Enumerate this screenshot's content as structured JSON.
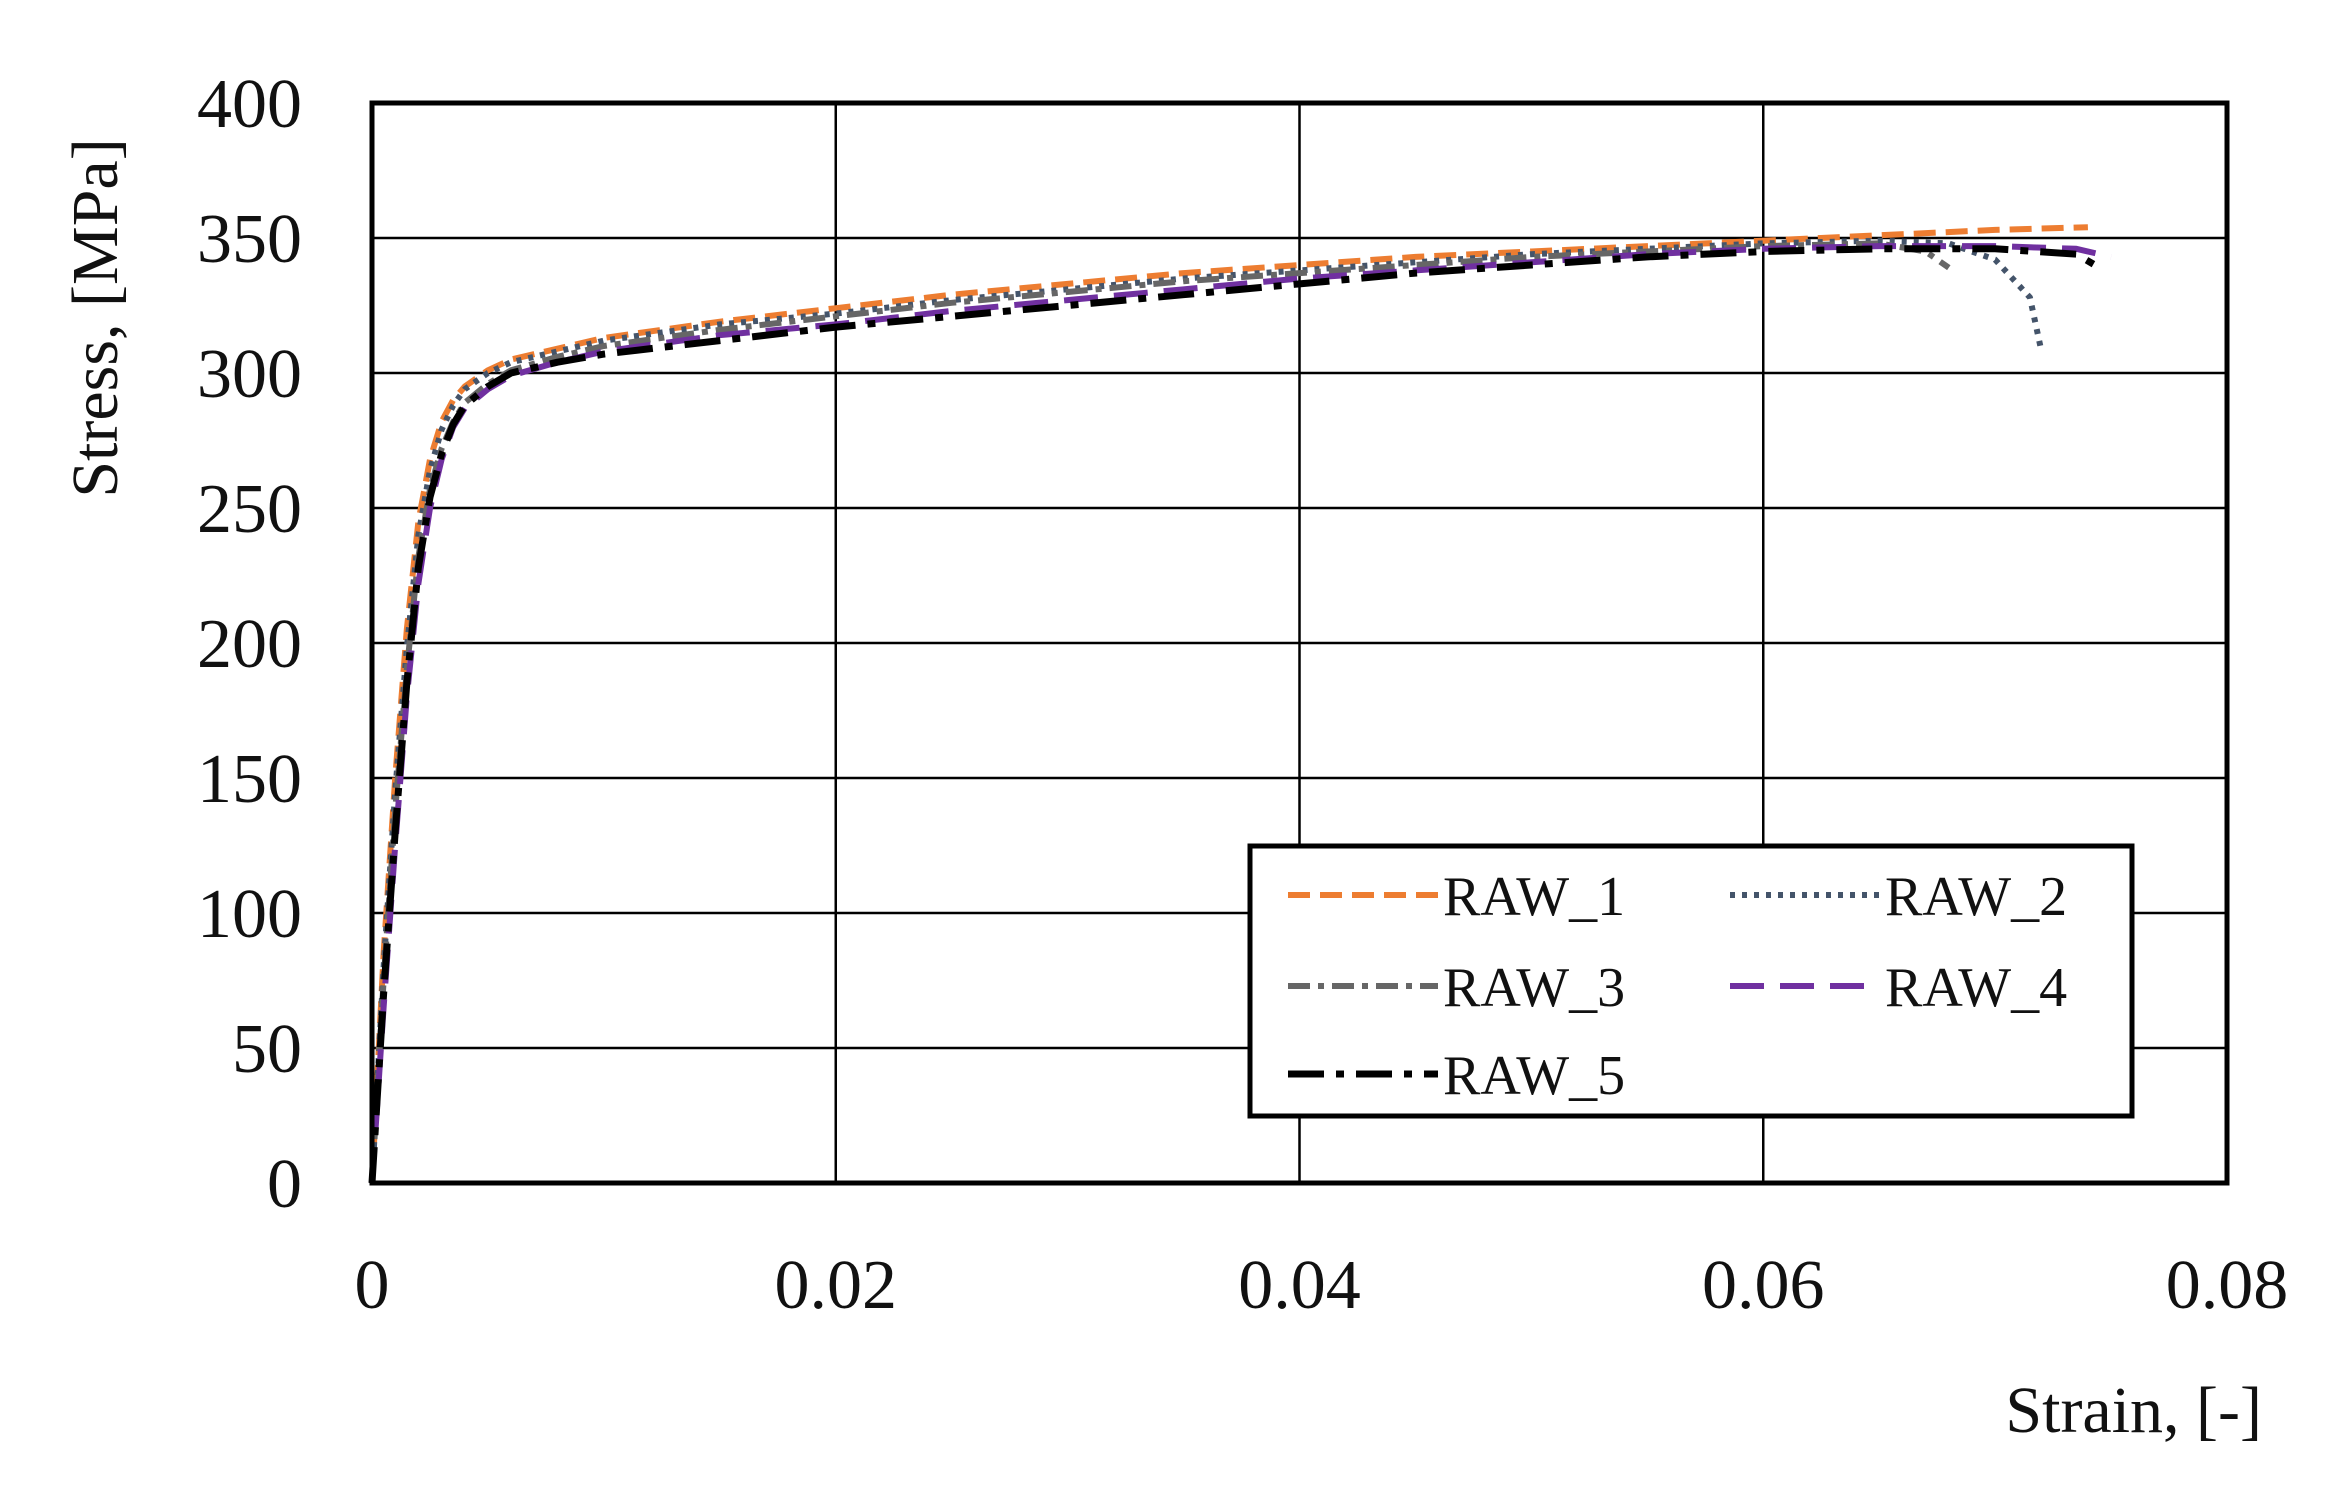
{
  "chart_data": {
    "type": "line",
    "title": "",
    "xlabel": "Strain, [-]",
    "ylabel": "Stress, [MPa]",
    "xlim": [
      0,
      0.08
    ],
    "ylim": [
      0,
      400
    ],
    "xticks": [
      0,
      0.02,
      0.04,
      0.06,
      0.08
    ],
    "xtick_labels": [
      "0",
      "0.02",
      "0.04",
      "0.06",
      "0.08"
    ],
    "yticks": [
      0,
      50,
      100,
      150,
      200,
      250,
      300,
      350,
      400
    ],
    "ytick_labels": [
      "0",
      "50",
      "100",
      "150",
      "200",
      "250",
      "300",
      "350",
      "400"
    ],
    "grid": true,
    "legend_position": "bottom-right",
    "series": [
      {
        "name": "RAW_1",
        "color": "#ED7D31",
        "dash": "dash",
        "x": [
          0,
          0.0005,
          0.001,
          0.0015,
          0.002,
          0.0025,
          0.003,
          0.0035,
          0.004,
          0.005,
          0.006,
          0.008,
          0.01,
          0.015,
          0.02,
          0.025,
          0.03,
          0.035,
          0.04,
          0.045,
          0.05,
          0.055,
          0.06,
          0.065,
          0.07,
          0.074
        ],
        "y": [
          0,
          85,
          150,
          205,
          245,
          268,
          282,
          290,
          295,
          301,
          305,
          309,
          313,
          319,
          324,
          329,
          333,
          337,
          340,
          343,
          345,
          347,
          349,
          351,
          353,
          354
        ]
      },
      {
        "name": "RAW_2",
        "color": "#44546A",
        "dash": "dot",
        "x": [
          0,
          0.0005,
          0.001,
          0.0015,
          0.002,
          0.0025,
          0.003,
          0.0035,
          0.004,
          0.005,
          0.006,
          0.008,
          0.01,
          0.015,
          0.02,
          0.025,
          0.03,
          0.035,
          0.04,
          0.045,
          0.05,
          0.055,
          0.06,
          0.065,
          0.068,
          0.07,
          0.0715,
          0.072
        ],
        "y": [
          0,
          80,
          145,
          198,
          240,
          264,
          279,
          288,
          294,
          300,
          304,
          308,
          312,
          318,
          322,
          327,
          331,
          335,
          338,
          341,
          344,
          346,
          348,
          349,
          348,
          342,
          328,
          308
        ]
      },
      {
        "name": "RAW_3",
        "color": "#666666",
        "dash": "dashdot",
        "x": [
          0,
          0.0005,
          0.001,
          0.0015,
          0.002,
          0.0025,
          0.003,
          0.0035,
          0.004,
          0.005,
          0.006,
          0.008,
          0.01,
          0.015,
          0.02,
          0.025,
          0.03,
          0.035,
          0.04,
          0.045,
          0.05,
          0.055,
          0.06,
          0.065,
          0.067,
          0.068
        ],
        "y": [
          0,
          75,
          138,
          190,
          232,
          257,
          272,
          282,
          289,
          296,
          301,
          306,
          310,
          316,
          321,
          326,
          330,
          334,
          337,
          340,
          343,
          345,
          347,
          348,
          345,
          339
        ]
      },
      {
        "name": "RAW_4",
        "color": "#7030A0",
        "dash": "longdash",
        "x": [
          0,
          0.0005,
          0.001,
          0.0015,
          0.002,
          0.0025,
          0.003,
          0.0035,
          0.004,
          0.005,
          0.006,
          0.008,
          0.01,
          0.015,
          0.02,
          0.025,
          0.03,
          0.035,
          0.04,
          0.045,
          0.05,
          0.055,
          0.06,
          0.065,
          0.07,
          0.0735,
          0.075
        ],
        "y": [
          0,
          65,
          125,
          180,
          222,
          250,
          268,
          280,
          287,
          294,
          299,
          304,
          308,
          314,
          318,
          323,
          327,
          331,
          335,
          338,
          341,
          344,
          346,
          347,
          347,
          346,
          343
        ]
      },
      {
        "name": "RAW_5",
        "color": "#000000",
        "dash": "longdashdot",
        "x": [
          0,
          0.0005,
          0.001,
          0.0015,
          0.002,
          0.0025,
          0.003,
          0.0035,
          0.004,
          0.005,
          0.006,
          0.008,
          0.01,
          0.015,
          0.02,
          0.025,
          0.03,
          0.035,
          0.04,
          0.045,
          0.05,
          0.055,
          0.06,
          0.065,
          0.07,
          0.0735,
          0.0745
        ],
        "y": [
          0,
          70,
          130,
          185,
          228,
          254,
          270,
          281,
          288,
          295,
          300,
          304,
          307,
          312,
          317,
          321,
          325,
          329,
          333,
          337,
          340,
          343,
          345,
          346,
          346,
          344,
          339
        ]
      }
    ]
  }
}
